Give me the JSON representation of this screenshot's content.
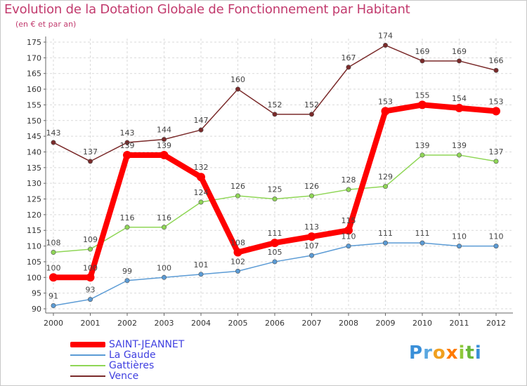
{
  "header": {
    "title": "Evolution de la Dotation Globale de Fonctionnement par Habitant",
    "subtitle": "(en € et par an)"
  },
  "chart_data": {
    "type": "line",
    "title": "Evolution de la Dotation Globale de Fonctionnement par Habitant",
    "subtitle": "(en € et par an)",
    "xlabel": "",
    "ylabel": "",
    "x": [
      "2000",
      "2001",
      "2002",
      "2003",
      "2004",
      "2005",
      "2006",
      "2007",
      "2008",
      "2009",
      "2010",
      "2011",
      "2012"
    ],
    "ylim": [
      90,
      175
    ],
    "yticks": [
      90,
      95,
      100,
      105,
      110,
      115,
      120,
      125,
      130,
      135,
      140,
      145,
      150,
      155,
      160,
      165,
      170,
      175
    ],
    "grid": true,
    "legend_position": "bottom-left",
    "series": [
      {
        "name": "SAINT-JEANNET",
        "color": "#ff0000",
        "values": [
          100,
          100,
          139,
          139,
          132,
          108,
          111,
          113,
          115,
          153,
          155,
          154,
          153
        ]
      },
      {
        "name": "La Gaude",
        "color": "#5b9bd5",
        "values": [
          91,
          93,
          99,
          100,
          101,
          102,
          105,
          107,
          110,
          111,
          111,
          110,
          110
        ]
      },
      {
        "name": "Gattières",
        "color": "#8fd656",
        "values": [
          108,
          109,
          116,
          116,
          124,
          126,
          125,
          126,
          128,
          129,
          139,
          139,
          137
        ]
      },
      {
        "name": "Vence",
        "color": "#7a2a2a",
        "values": [
          143,
          137,
          143,
          144,
          147,
          160,
          152,
          152,
          167,
          174,
          169,
          169,
          166
        ]
      }
    ]
  },
  "logo": {
    "letters": [
      {
        "char": "P",
        "color": "#3a8fd8"
      },
      {
        "char": "r",
        "color": "#5aa7e0"
      },
      {
        "char": "o",
        "color": "#f0a020"
      },
      {
        "char": "x",
        "color": "#ff7a00"
      },
      {
        "char": "i",
        "color": "#8fc93a"
      },
      {
        "char": "t",
        "color": "#6ab83a"
      },
      {
        "char": "i",
        "color": "#3a8fd8"
      }
    ]
  }
}
